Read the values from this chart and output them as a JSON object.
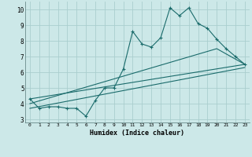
{
  "title": "",
  "xlabel": "Humidex (Indice chaleur)",
  "xlim": [
    -0.5,
    23.5
  ],
  "ylim": [
    2.8,
    10.5
  ],
  "xticks": [
    0,
    1,
    2,
    3,
    4,
    5,
    6,
    7,
    8,
    9,
    10,
    11,
    12,
    13,
    14,
    15,
    16,
    17,
    18,
    19,
    20,
    21,
    22,
    23
  ],
  "yticks": [
    3,
    4,
    5,
    6,
    7,
    8,
    9,
    10
  ],
  "bg_color": "#cce8e8",
  "line_color": "#1a6b6b",
  "grid_color": "#aacece",
  "line1_x": [
    0,
    1,
    2,
    3,
    4,
    5,
    6,
    7,
    8,
    9,
    10,
    11,
    12,
    13,
    14,
    15,
    16,
    17,
    18,
    19,
    20,
    21,
    22,
    23
  ],
  "line1_y": [
    4.3,
    3.7,
    3.8,
    3.8,
    3.7,
    3.7,
    3.2,
    4.2,
    5.0,
    5.0,
    6.2,
    8.6,
    7.8,
    7.6,
    8.2,
    10.1,
    9.6,
    10.1,
    9.1,
    8.8,
    8.1,
    7.5,
    7.0,
    6.5
  ],
  "line2_x": [
    0,
    23
  ],
  "line2_y": [
    4.3,
    6.5
  ],
  "line3_x": [
    0,
    20,
    23
  ],
  "line3_y": [
    4.0,
    7.5,
    6.5
  ],
  "line4_x": [
    0,
    23
  ],
  "line4_y": [
    3.7,
    6.3
  ]
}
